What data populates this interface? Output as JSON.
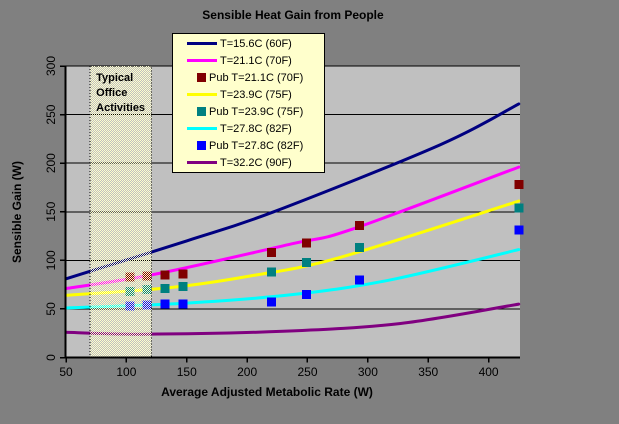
{
  "window": {
    "outer_bg": "#808080"
  },
  "chart_data": {
    "type": "line",
    "title": "Sensible Heat Gain from People",
    "xlabel": "Average Adjusted Metabolic Rate (W)",
    "ylabel": "Sensible Gain (W)",
    "xlim": [
      50,
      426
    ],
    "ylim": [
      0,
      300
    ],
    "x_ticks": [
      50,
      100,
      150,
      200,
      250,
      300,
      350,
      400
    ],
    "y_ticks": [
      0,
      50,
      100,
      150,
      200,
      250,
      300
    ],
    "grid": "horizontal",
    "plot_bg": "#c0c0c0",
    "outer_bg": "#808080",
    "legend_bg": "#ffffcc",
    "legend_position": "top-inside",
    "band": {
      "label": "Typical Office Activities",
      "x_from": 70,
      "x_to": 121,
      "fill": "#ffffcc",
      "border_style": "dotted"
    },
    "series": [
      {
        "name": "T=15.6C (60F)",
        "style": "line",
        "color": "#000080",
        "points": [
          [
            50,
            81
          ],
          [
            150,
            120
          ],
          [
            222,
            150
          ],
          [
            360,
            219
          ],
          [
            425,
            261
          ]
        ]
      },
      {
        "name": "T=21.1C (70F)",
        "style": "line",
        "color": "#ff00ff",
        "points": [
          [
            50,
            71
          ],
          [
            125,
            86
          ],
          [
            237,
            117
          ],
          [
            287,
            132
          ],
          [
            425,
            196
          ]
        ]
      },
      {
        "name": "Pub T=21.1C (70F)",
        "style": "marker",
        "color": "#800000",
        "points": [
          [
            103,
            83
          ],
          [
            117,
            84
          ],
          [
            132,
            85
          ],
          [
            147,
            86
          ],
          [
            220,
            108
          ],
          [
            249,
            118
          ],
          [
            293,
            136
          ],
          [
            425,
            178
          ]
        ]
      },
      {
        "name": "T=23.9C (75F)",
        "style": "line",
        "color": "#ffff00",
        "points": [
          [
            50,
            64
          ],
          [
            137,
            72
          ],
          [
            203,
            84
          ],
          [
            277,
            103
          ],
          [
            425,
            161
          ]
        ]
      },
      {
        "name": "Pub T=23.9C (75F)",
        "style": "marker",
        "color": "#008080",
        "points": [
          [
            103,
            68
          ],
          [
            117,
            70
          ],
          [
            132,
            71
          ],
          [
            147,
            73
          ],
          [
            220,
            88
          ],
          [
            249,
            98
          ],
          [
            293,
            113
          ],
          [
            425,
            154
          ]
        ]
      },
      {
        "name": "T=27.8C (82F)",
        "style": "line",
        "color": "#00ffff",
        "points": [
          [
            50,
            51
          ],
          [
            150,
            56
          ],
          [
            240,
            65
          ],
          [
            319,
            80
          ],
          [
            425,
            111
          ]
        ]
      },
      {
        "name": "Pub T=27.8C (82F)",
        "style": "marker",
        "color": "#0000ff",
        "points": [
          [
            103,
            53
          ],
          [
            117,
            54
          ],
          [
            132,
            55
          ],
          [
            147,
            55
          ],
          [
            220,
            57
          ],
          [
            249,
            65
          ],
          [
            293,
            80
          ],
          [
            425,
            131
          ]
        ]
      },
      {
        "name": "T=32.2C (90F)",
        "style": "line",
        "color": "#800080",
        "points": [
          [
            50,
            26
          ],
          [
            114,
            24
          ],
          [
            230,
            27
          ],
          [
            327,
            35
          ],
          [
            425,
            55
          ]
        ]
      }
    ]
  }
}
